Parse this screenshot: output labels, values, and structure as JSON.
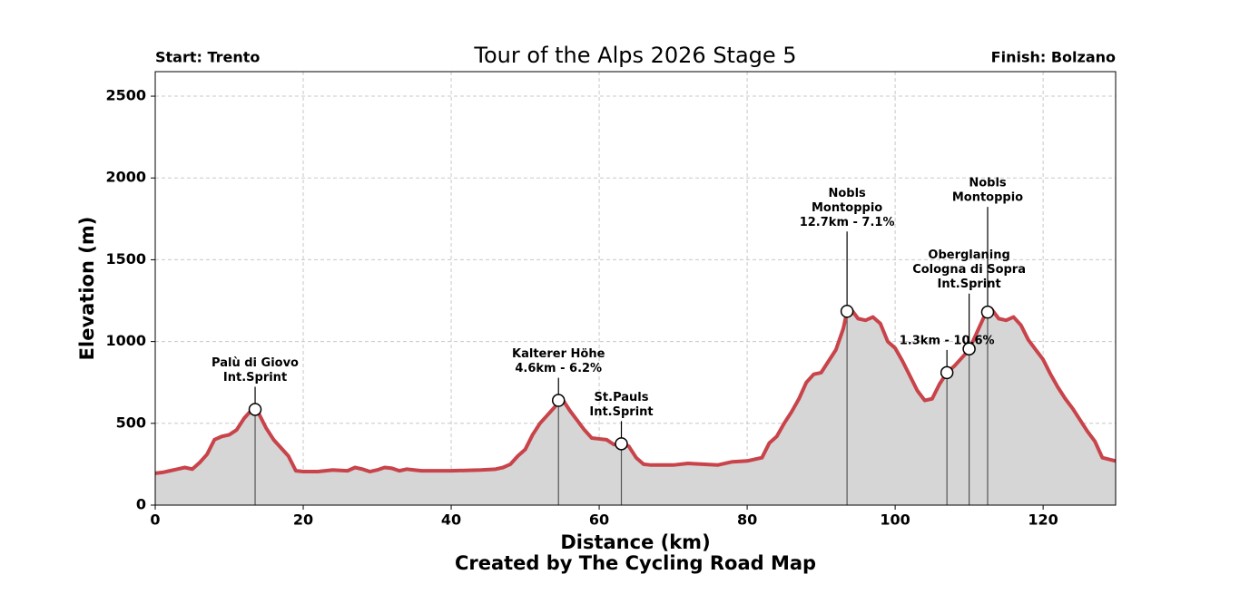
{
  "chart_data": {
    "type": "area-line",
    "title": "Tour of the Alps 2026 Stage 5",
    "start_label": "Start: Trento",
    "finish_label": "Finish: Bolzano",
    "x_label": "Distance (km)",
    "y_label": "Elevation (m)",
    "footer": "Created by The Cycling Road Map",
    "xlim": [
      0,
      129.8
    ],
    "ylim": [
      0,
      2650
    ],
    "xticks": [
      0,
      20,
      40,
      60,
      80,
      100,
      120
    ],
    "yticks": [
      0,
      500,
      1000,
      1500,
      2000,
      2500
    ],
    "grid": true,
    "x": [
      0,
      1,
      2,
      3,
      4,
      5,
      6,
      7,
      8,
      9,
      10,
      11,
      12,
      13,
      13.5,
      14,
      15,
      16,
      17,
      18,
      19,
      20,
      22,
      24,
      26,
      27,
      28,
      29,
      30,
      31,
      32,
      33,
      34,
      35,
      36,
      40,
      44,
      46,
      47,
      48,
      49,
      50,
      51,
      52,
      53,
      54,
      54.5,
      55,
      56,
      57,
      58,
      59,
      60,
      61,
      62,
      63,
      64,
      65,
      66,
      67,
      70,
      72,
      74,
      76,
      78,
      80,
      82,
      83,
      84,
      85,
      86,
      87,
      88,
      89,
      90,
      91,
      92,
      93,
      93.5,
      94,
      95,
      96,
      97,
      98,
      99,
      100,
      101,
      102,
      103,
      104,
      105,
      106,
      107,
      108,
      109,
      110,
      111,
      112,
      112.5,
      113,
      114,
      115,
      116,
      117,
      118,
      119,
      120,
      121,
      122,
      123,
      124,
      125,
      126,
      127,
      128,
      129.8
    ],
    "series": [
      {
        "name": "Elevation",
        "color": "#c8434a",
        "fill": "#d6d6d6",
        "values": [
          195,
          200,
          210,
          220,
          230,
          220,
          260,
          310,
          400,
          420,
          430,
          460,
          530,
          580,
          585,
          560,
          470,
          400,
          350,
          300,
          210,
          205,
          205,
          215,
          210,
          230,
          220,
          205,
          215,
          230,
          225,
          210,
          220,
          215,
          210,
          210,
          215,
          220,
          230,
          250,
          300,
          340,
          430,
          500,
          550,
          600,
          640,
          650,
          580,
          520,
          460,
          410,
          405,
          400,
          370,
          375,
          360,
          290,
          250,
          245,
          245,
          255,
          250,
          245,
          265,
          270,
          290,
          380,
          420,
          500,
          570,
          650,
          750,
          800,
          810,
          880,
          950,
          1080,
          1185,
          1200,
          1140,
          1130,
          1150,
          1110,
          1000,
          960,
          880,
          790,
          700,
          640,
          650,
          740,
          810,
          850,
          900,
          950,
          1050,
          1150,
          1180,
          1200,
          1140,
          1130,
          1150,
          1100,
          1010,
          950,
          890,
          800,
          720,
          650,
          590,
          520,
          450,
          390,
          290,
          270
        ]
      }
    ],
    "annotations": [
      {
        "x": 13.5,
        "y": 585,
        "lines": [
          "Palù di Giovo",
          "Int.Sprint"
        ]
      },
      {
        "x": 54.5,
        "y": 640,
        "lines": [
          "Kalterer Höhe",
          "4.6km - 6.2%"
        ]
      },
      {
        "x": 63,
        "y": 375,
        "lines": [
          "St.Pauls",
          "Int.Sprint"
        ]
      },
      {
        "x": 93.5,
        "y": 1185,
        "lines": [
          "Nobls",
          "Montoppio",
          "12.7km - 7.1%"
        ]
      },
      {
        "x": 107,
        "y": 810,
        "lines": [
          "1.3km - 10.6%"
        ]
      },
      {
        "x": 110,
        "y": 955,
        "lines": [
          "Oberglaning",
          "Cologna di Sopra",
          "Int.Sprint"
        ]
      },
      {
        "x": 112.5,
        "y": 1180,
        "lines": [
          "Nobls",
          "Montoppio"
        ]
      }
    ]
  }
}
